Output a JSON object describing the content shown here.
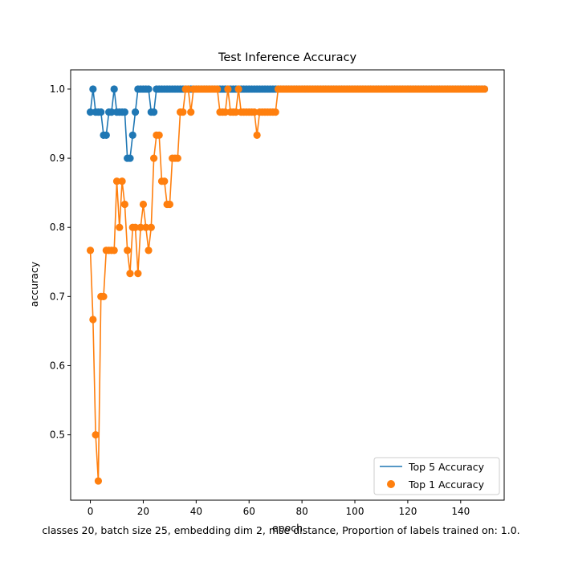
{
  "chart_data": {
    "type": "line",
    "title": "Test Inference Accuracy",
    "xlabel": "epoch",
    "ylabel": "accuracy",
    "caption": "classes 20, batch size 25, embedding dim 2, mse distance, Proportion of labels trained on: 1.0.",
    "xlim": [
      -7.45,
      156.45
    ],
    "ylim": [
      0.4055,
      1.0278
    ],
    "xticks": [
      0,
      20,
      40,
      60,
      80,
      100,
      120,
      140
    ],
    "yticks": [
      0.5,
      0.6,
      0.7,
      0.8,
      0.9,
      1.0
    ],
    "ytick_labels": [
      "0.5",
      "0.6",
      "0.7",
      "0.8",
      "0.9",
      "1.0"
    ],
    "grid": false,
    "legend": "lower-right",
    "series": [
      {
        "name": "Top 5 Accuracy",
        "color": "#1f77b4",
        "style": "line+markers",
        "x_start": 0,
        "values": [
          0.9667,
          1.0,
          0.9667,
          0.9667,
          0.9667,
          0.9333,
          0.9333,
          0.9667,
          0.9667,
          1.0,
          0.9667,
          0.9667,
          0.9667,
          0.9667,
          0.9,
          0.9,
          0.9333,
          0.9667,
          1.0,
          1.0,
          1.0,
          1.0,
          1.0,
          0.9667,
          0.9667,
          1.0,
          1.0,
          1.0,
          1.0,
          1.0,
          1.0,
          1.0,
          1.0,
          1.0,
          1.0,
          1.0,
          1.0,
          1.0,
          1.0,
          1.0,
          1.0,
          1.0,
          1.0,
          1.0,
          1.0,
          1.0,
          1.0,
          1.0,
          1.0,
          1.0,
          1.0,
          1.0,
          1.0,
          1.0,
          1.0,
          1.0,
          1.0,
          1.0,
          1.0,
          1.0,
          1.0,
          1.0,
          1.0,
          1.0,
          1.0,
          1.0,
          1.0,
          1.0,
          1.0,
          1.0,
          1.0,
          1.0,
          1.0,
          1.0,
          1.0,
          1.0,
          1.0,
          1.0,
          1.0,
          1.0,
          1.0,
          1.0,
          1.0,
          1.0,
          1.0,
          1.0,
          1.0,
          1.0,
          1.0,
          1.0,
          1.0,
          1.0,
          1.0,
          1.0,
          1.0,
          1.0,
          1.0,
          1.0,
          1.0,
          1.0,
          1.0,
          1.0,
          1.0,
          1.0,
          1.0,
          1.0,
          1.0,
          1.0,
          1.0,
          1.0,
          1.0,
          1.0,
          1.0,
          1.0,
          1.0,
          1.0,
          1.0,
          1.0,
          1.0,
          1.0,
          1.0,
          1.0,
          1.0,
          1.0,
          1.0,
          1.0,
          1.0,
          1.0,
          1.0,
          1.0,
          1.0,
          1.0,
          1.0,
          1.0,
          1.0,
          1.0,
          1.0,
          1.0,
          1.0,
          1.0,
          1.0,
          1.0,
          1.0,
          1.0,
          1.0,
          1.0,
          1.0,
          1.0,
          1.0,
          1.0
        ]
      },
      {
        "name": "Top 1 Accuracy",
        "color": "#ff7f0e",
        "style": "line+markers",
        "x_start": 0,
        "values": [
          0.7667,
          0.6667,
          0.5,
          0.4333,
          0.7,
          0.7,
          0.7667,
          0.7667,
          0.7667,
          0.7667,
          0.8667,
          0.8,
          0.8667,
          0.8333,
          0.7667,
          0.7333,
          0.8,
          0.8,
          0.7333,
          0.8,
          0.8333,
          0.8,
          0.7667,
          0.8,
          0.9,
          0.9333,
          0.9333,
          0.8667,
          0.8667,
          0.8333,
          0.8333,
          0.9,
          0.9,
          0.9,
          0.9667,
          0.9667,
          1.0,
          1.0,
          0.9667,
          1.0,
          1.0,
          1.0,
          1.0,
          1.0,
          1.0,
          1.0,
          1.0,
          1.0,
          1.0,
          0.9667,
          0.9667,
          0.9667,
          1.0,
          0.9667,
          0.9667,
          0.9667,
          1.0,
          0.9667,
          0.9667,
          0.9667,
          0.9667,
          0.9667,
          0.9667,
          0.9333,
          0.9667,
          0.9667,
          0.9667,
          0.9667,
          0.9667,
          0.9667,
          0.9667,
          1.0,
          1.0,
          1.0,
          1.0,
          1.0,
          1.0,
          1.0,
          1.0,
          1.0,
          1.0,
          1.0,
          1.0,
          1.0,
          1.0,
          1.0,
          1.0,
          1.0,
          1.0,
          1.0,
          1.0,
          1.0,
          1.0,
          1.0,
          1.0,
          1.0,
          1.0,
          1.0,
          1.0,
          1.0,
          1.0,
          1.0,
          1.0,
          1.0,
          1.0,
          1.0,
          1.0,
          1.0,
          1.0,
          1.0,
          1.0,
          1.0,
          1.0,
          1.0,
          1.0,
          1.0,
          1.0,
          1.0,
          1.0,
          1.0,
          1.0,
          1.0,
          1.0,
          1.0,
          1.0,
          1.0,
          1.0,
          1.0,
          1.0,
          1.0,
          1.0,
          1.0,
          1.0,
          1.0,
          1.0,
          1.0,
          1.0,
          1.0,
          1.0,
          1.0,
          1.0,
          1.0,
          1.0,
          1.0,
          1.0,
          1.0,
          1.0,
          1.0,
          1.0,
          1.0
        ]
      }
    ]
  }
}
